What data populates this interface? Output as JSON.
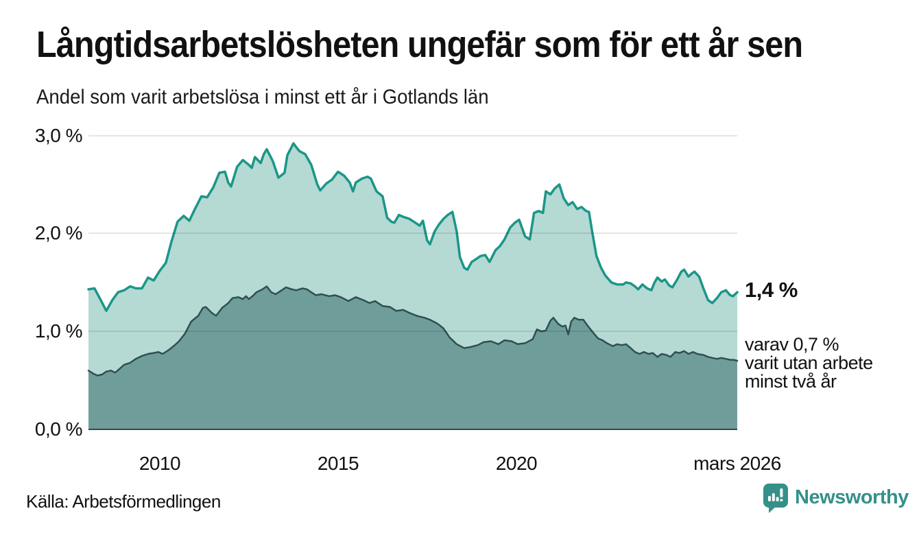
{
  "chart_data": {
    "type": "area",
    "title": "Långtidsarbetslösheten ungefär som för ett år sen",
    "subtitle": "Andel som varit arbetslösa i minst ett år i Gotlands län",
    "unit": "%",
    "x_axis": {
      "domain": [
        2008.0,
        2026.2
      ],
      "ticks": [
        {
          "v": 2010,
          "label": "2010"
        },
        {
          "v": 2015,
          "label": "2015"
        },
        {
          "v": 2020,
          "label": "2020"
        },
        {
          "v": 2026.2,
          "label": "mars 2026"
        }
      ]
    },
    "y_axis": {
      "range": [
        0,
        3.05
      ],
      "ticks": [
        {
          "v": 0,
          "label": "0,0 %"
        },
        {
          "v": 1,
          "label": "1,0 %"
        },
        {
          "v": 2,
          "label": "2,0 %"
        },
        {
          "v": 3,
          "label": "3,0 %"
        }
      ]
    },
    "series": [
      {
        "name": "Andel som varit arbetslösa i minst ett år",
        "stroke": "#1b9688",
        "fill": "#b5d9d3",
        "stroke_width": 3.5,
        "points": [
          [
            2008.0,
            1.43
          ],
          [
            2008.17,
            1.44
          ],
          [
            2008.33,
            1.33
          ],
          [
            2008.5,
            1.21
          ],
          [
            2008.67,
            1.32
          ],
          [
            2008.83,
            1.4
          ],
          [
            2009.0,
            1.42
          ],
          [
            2009.17,
            1.46
          ],
          [
            2009.33,
            1.44
          ],
          [
            2009.5,
            1.44
          ],
          [
            2009.67,
            1.55
          ],
          [
            2009.83,
            1.52
          ],
          [
            2010.0,
            1.62
          ],
          [
            2010.17,
            1.7
          ],
          [
            2010.33,
            1.92
          ],
          [
            2010.5,
            2.12
          ],
          [
            2010.67,
            2.18
          ],
          [
            2010.83,
            2.13
          ],
          [
            2011.0,
            2.26
          ],
          [
            2011.17,
            2.38
          ],
          [
            2011.33,
            2.37
          ],
          [
            2011.5,
            2.47
          ],
          [
            2011.67,
            2.62
          ],
          [
            2011.83,
            2.63
          ],
          [
            2011.92,
            2.52
          ],
          [
            2012.0,
            2.48
          ],
          [
            2012.17,
            2.68
          ],
          [
            2012.33,
            2.75
          ],
          [
            2012.5,
            2.7
          ],
          [
            2012.58,
            2.67
          ],
          [
            2012.67,
            2.78
          ],
          [
            2012.83,
            2.72
          ],
          [
            2012.92,
            2.81
          ],
          [
            2013.0,
            2.86
          ],
          [
            2013.17,
            2.74
          ],
          [
            2013.33,
            2.57
          ],
          [
            2013.5,
            2.62
          ],
          [
            2013.58,
            2.8
          ],
          [
            2013.75,
            2.92
          ],
          [
            2013.83,
            2.88
          ],
          [
            2013.92,
            2.84
          ],
          [
            2014.08,
            2.81
          ],
          [
            2014.25,
            2.7
          ],
          [
            2014.42,
            2.5
          ],
          [
            2014.5,
            2.44
          ],
          [
            2014.67,
            2.51
          ],
          [
            2014.83,
            2.55
          ],
          [
            2015.0,
            2.63
          ],
          [
            2015.17,
            2.59
          ],
          [
            2015.33,
            2.52
          ],
          [
            2015.42,
            2.43
          ],
          [
            2015.5,
            2.52
          ],
          [
            2015.67,
            2.56
          ],
          [
            2015.83,
            2.58
          ],
          [
            2015.92,
            2.56
          ],
          [
            2016.08,
            2.43
          ],
          [
            2016.25,
            2.38
          ],
          [
            2016.38,
            2.16
          ],
          [
            2016.5,
            2.12
          ],
          [
            2016.58,
            2.11
          ],
          [
            2016.71,
            2.19
          ],
          [
            2016.83,
            2.17
          ],
          [
            2017.0,
            2.15
          ],
          [
            2017.17,
            2.11
          ],
          [
            2017.29,
            2.08
          ],
          [
            2017.38,
            2.13
          ],
          [
            2017.5,
            1.93
          ],
          [
            2017.58,
            1.89
          ],
          [
            2017.71,
            2.02
          ],
          [
            2017.83,
            2.09
          ],
          [
            2017.96,
            2.15
          ],
          [
            2018.08,
            2.19
          ],
          [
            2018.21,
            2.22
          ],
          [
            2018.33,
            2.02
          ],
          [
            2018.42,
            1.76
          ],
          [
            2018.54,
            1.65
          ],
          [
            2018.63,
            1.63
          ],
          [
            2018.75,
            1.71
          ],
          [
            2018.88,
            1.74
          ],
          [
            2019.0,
            1.77
          ],
          [
            2019.13,
            1.78
          ],
          [
            2019.25,
            1.71
          ],
          [
            2019.42,
            1.83
          ],
          [
            2019.54,
            1.87
          ],
          [
            2019.67,
            1.94
          ],
          [
            2019.83,
            2.06
          ],
          [
            2019.96,
            2.11
          ],
          [
            2020.08,
            2.14
          ],
          [
            2020.25,
            1.97
          ],
          [
            2020.38,
            1.94
          ],
          [
            2020.5,
            2.21
          ],
          [
            2020.63,
            2.23
          ],
          [
            2020.75,
            2.21
          ],
          [
            2020.83,
            2.43
          ],
          [
            2020.96,
            2.4
          ],
          [
            2021.08,
            2.46
          ],
          [
            2021.21,
            2.5
          ],
          [
            2021.33,
            2.36
          ],
          [
            2021.46,
            2.29
          ],
          [
            2021.58,
            2.32
          ],
          [
            2021.71,
            2.25
          ],
          [
            2021.83,
            2.27
          ],
          [
            2021.96,
            2.23
          ],
          [
            2022.04,
            2.22
          ],
          [
            2022.13,
            2.02
          ],
          [
            2022.25,
            1.77
          ],
          [
            2022.38,
            1.65
          ],
          [
            2022.5,
            1.57
          ],
          [
            2022.67,
            1.5
          ],
          [
            2022.83,
            1.48
          ],
          [
            2023.0,
            1.48
          ],
          [
            2023.08,
            1.5
          ],
          [
            2023.21,
            1.49
          ],
          [
            2023.33,
            1.46
          ],
          [
            2023.42,
            1.43
          ],
          [
            2023.54,
            1.48
          ],
          [
            2023.67,
            1.44
          ],
          [
            2023.79,
            1.42
          ],
          [
            2023.88,
            1.5
          ],
          [
            2023.96,
            1.55
          ],
          [
            2024.08,
            1.51
          ],
          [
            2024.17,
            1.53
          ],
          [
            2024.29,
            1.47
          ],
          [
            2024.38,
            1.45
          ],
          [
            2024.5,
            1.52
          ],
          [
            2024.63,
            1.61
          ],
          [
            2024.71,
            1.63
          ],
          [
            2024.83,
            1.56
          ],
          [
            2024.92,
            1.59
          ],
          [
            2025.0,
            1.61
          ],
          [
            2025.13,
            1.56
          ],
          [
            2025.25,
            1.44
          ],
          [
            2025.38,
            1.32
          ],
          [
            2025.5,
            1.29
          ],
          [
            2025.63,
            1.34
          ],
          [
            2025.75,
            1.4
          ],
          [
            2025.88,
            1.42
          ],
          [
            2026.0,
            1.37
          ],
          [
            2026.08,
            1.36
          ],
          [
            2026.2,
            1.4
          ]
        ]
      },
      {
        "name": "varav varit utan arbete minst två år",
        "stroke": "#2f4f52",
        "fill": "#6f9e9a",
        "stroke_width": 2.5,
        "points": [
          [
            2008.0,
            0.6
          ],
          [
            2008.13,
            0.57
          ],
          [
            2008.25,
            0.55
          ],
          [
            2008.38,
            0.56
          ],
          [
            2008.5,
            0.59
          ],
          [
            2008.63,
            0.6
          ],
          [
            2008.75,
            0.58
          ],
          [
            2008.88,
            0.62
          ],
          [
            2009.0,
            0.66
          ],
          [
            2009.17,
            0.68
          ],
          [
            2009.33,
            0.72
          ],
          [
            2009.5,
            0.75
          ],
          [
            2009.67,
            0.77
          ],
          [
            2009.83,
            0.78
          ],
          [
            2009.96,
            0.79
          ],
          [
            2010.08,
            0.77
          ],
          [
            2010.25,
            0.81
          ],
          [
            2010.42,
            0.86
          ],
          [
            2010.54,
            0.9
          ],
          [
            2010.71,
            0.98
          ],
          [
            2010.88,
            1.1
          ],
          [
            2011.08,
            1.16
          ],
          [
            2011.21,
            1.24
          ],
          [
            2011.29,
            1.25
          ],
          [
            2011.46,
            1.19
          ],
          [
            2011.58,
            1.16
          ],
          [
            2011.75,
            1.24
          ],
          [
            2011.92,
            1.29
          ],
          [
            2012.04,
            1.34
          ],
          [
            2012.21,
            1.35
          ],
          [
            2012.33,
            1.33
          ],
          [
            2012.42,
            1.36
          ],
          [
            2012.5,
            1.33
          ],
          [
            2012.63,
            1.37
          ],
          [
            2012.71,
            1.4
          ],
          [
            2012.88,
            1.43
          ],
          [
            2013.0,
            1.46
          ],
          [
            2013.13,
            1.4
          ],
          [
            2013.25,
            1.38
          ],
          [
            2013.42,
            1.42
          ],
          [
            2013.54,
            1.45
          ],
          [
            2013.71,
            1.43
          ],
          [
            2013.83,
            1.42
          ],
          [
            2014.0,
            1.44
          ],
          [
            2014.13,
            1.43
          ],
          [
            2014.25,
            1.4
          ],
          [
            2014.38,
            1.37
          ],
          [
            2014.54,
            1.38
          ],
          [
            2014.75,
            1.36
          ],
          [
            2014.92,
            1.37
          ],
          [
            2015.08,
            1.35
          ],
          [
            2015.29,
            1.31
          ],
          [
            2015.5,
            1.35
          ],
          [
            2015.71,
            1.32
          ],
          [
            2015.88,
            1.29
          ],
          [
            2016.04,
            1.31
          ],
          [
            2016.25,
            1.26
          ],
          [
            2016.46,
            1.25
          ],
          [
            2016.63,
            1.21
          ],
          [
            2016.83,
            1.22
          ],
          [
            2017.0,
            1.19
          ],
          [
            2017.21,
            1.16
          ],
          [
            2017.42,
            1.14
          ],
          [
            2017.58,
            1.12
          ],
          [
            2017.79,
            1.08
          ],
          [
            2017.96,
            1.03
          ],
          [
            2018.13,
            0.94
          ],
          [
            2018.33,
            0.87
          ],
          [
            2018.54,
            0.83
          ],
          [
            2018.71,
            0.84
          ],
          [
            2018.92,
            0.86
          ],
          [
            2019.08,
            0.89
          ],
          [
            2019.29,
            0.9
          ],
          [
            2019.5,
            0.87
          ],
          [
            2019.67,
            0.91
          ],
          [
            2019.87,
            0.9
          ],
          [
            2020.04,
            0.87
          ],
          [
            2020.25,
            0.88
          ],
          [
            2020.46,
            0.92
          ],
          [
            2020.58,
            1.02
          ],
          [
            2020.71,
            1.0
          ],
          [
            2020.83,
            1.01
          ],
          [
            2020.96,
            1.11
          ],
          [
            2021.04,
            1.14
          ],
          [
            2021.17,
            1.08
          ],
          [
            2021.29,
            1.05
          ],
          [
            2021.38,
            1.06
          ],
          [
            2021.46,
            0.97
          ],
          [
            2021.54,
            1.1
          ],
          [
            2021.63,
            1.14
          ],
          [
            2021.75,
            1.12
          ],
          [
            2021.88,
            1.12
          ],
          [
            2022.0,
            1.06
          ],
          [
            2022.13,
            1.0
          ],
          [
            2022.29,
            0.93
          ],
          [
            2022.42,
            0.91
          ],
          [
            2022.54,
            0.88
          ],
          [
            2022.71,
            0.85
          ],
          [
            2022.83,
            0.87
          ],
          [
            2022.96,
            0.86
          ],
          [
            2023.08,
            0.87
          ],
          [
            2023.21,
            0.83
          ],
          [
            2023.33,
            0.79
          ],
          [
            2023.46,
            0.77
          ],
          [
            2023.58,
            0.79
          ],
          [
            2023.71,
            0.77
          ],
          [
            2023.83,
            0.78
          ],
          [
            2023.96,
            0.74
          ],
          [
            2024.08,
            0.77
          ],
          [
            2024.21,
            0.76
          ],
          [
            2024.33,
            0.74
          ],
          [
            2024.46,
            0.79
          ],
          [
            2024.58,
            0.78
          ],
          [
            2024.71,
            0.8
          ],
          [
            2024.83,
            0.77
          ],
          [
            2024.96,
            0.79
          ],
          [
            2025.08,
            0.77
          ],
          [
            2025.25,
            0.76
          ],
          [
            2025.38,
            0.74
          ],
          [
            2025.5,
            0.73
          ],
          [
            2025.63,
            0.72
          ],
          [
            2025.75,
            0.73
          ],
          [
            2025.88,
            0.72
          ],
          [
            2026.0,
            0.71
          ],
          [
            2026.1,
            0.71
          ],
          [
            2026.2,
            0.7
          ]
        ]
      }
    ],
    "annotations": {
      "end_label": "1,4 %",
      "note_line_1": "varav 0,7 %",
      "note_line_2": "varit utan arbete",
      "note_line_3": "minst två år"
    }
  },
  "footer": {
    "source": "Källa: Arbetsförmedlingen",
    "logo_text": "Newsworthy"
  },
  "colors": {
    "series1_stroke": "#1b9688",
    "series1_fill": "#b5d9d3",
    "series2_stroke": "#2f4f52",
    "series2_fill": "#6f9e9a",
    "logo_teal": "#35908a",
    "gridline": "#e5e5e5",
    "axis": "#37474a"
  }
}
